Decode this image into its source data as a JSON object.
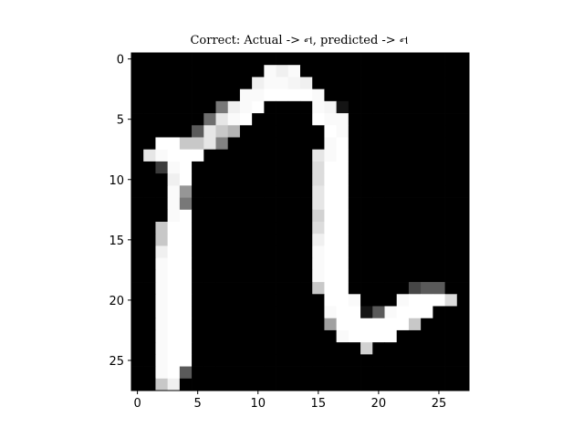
{
  "chart_data": {
    "type": "heatmap",
    "title": "Correct: Actual -> ન, predicted -> ન",
    "colormap": "gray",
    "xlabel": "",
    "ylabel": "",
    "x_ticks": [
      0,
      5,
      10,
      15,
      20,
      25
    ],
    "y_ticks": [
      0,
      5,
      10,
      15,
      20,
      25
    ],
    "xlim": [
      -0.5,
      27.5
    ],
    "ylim": [
      27.5,
      -0.5
    ],
    "grid": false,
    "rows": 28,
    "cols": 28,
    "values": [
      [
        0,
        0,
        0,
        0,
        0,
        0,
        0,
        0,
        0,
        0,
        0,
        0,
        0,
        0,
        0,
        0,
        0,
        0,
        0,
        0,
        0,
        0,
        0,
        0,
        0,
        0,
        0,
        0
      ],
      [
        0,
        0,
        0,
        0,
        0,
        0,
        0,
        0,
        0,
        0,
        0,
        250,
        240,
        250,
        0,
        0,
        0,
        0,
        0,
        0,
        0,
        0,
        0,
        0,
        0,
        0,
        0,
        0
      ],
      [
        0,
        0,
        0,
        0,
        0,
        0,
        0,
        0,
        0,
        0,
        240,
        250,
        250,
        245,
        240,
        0,
        0,
        0,
        0,
        0,
        0,
        0,
        0,
        0,
        0,
        0,
        0,
        0
      ],
      [
        0,
        0,
        0,
        0,
        0,
        0,
        0,
        0,
        0,
        250,
        250,
        255,
        255,
        255,
        255,
        250,
        0,
        0,
        0,
        0,
        0,
        0,
        0,
        0,
        0,
        0,
        0,
        0
      ],
      [
        0,
        0,
        0,
        0,
        0,
        0,
        0,
        120,
        240,
        250,
        255,
        0,
        0,
        0,
        0,
        250,
        245,
        20,
        0,
        0,
        0,
        0,
        0,
        0,
        0,
        0,
        0,
        0
      ],
      [
        0,
        0,
        0,
        0,
        0,
        0,
        110,
        230,
        250,
        255,
        0,
        0,
        0,
        0,
        0,
        255,
        250,
        250,
        0,
        0,
        0,
        0,
        0,
        0,
        0,
        0,
        0,
        0
      ],
      [
        0,
        0,
        0,
        0,
        0,
        90,
        230,
        200,
        180,
        0,
        0,
        0,
        0,
        0,
        0,
        0,
        255,
        250,
        0,
        0,
        0,
        0,
        0,
        0,
        0,
        0,
        0,
        0
      ],
      [
        0,
        0,
        255,
        255,
        200,
        200,
        230,
        130,
        0,
        0,
        0,
        0,
        0,
        0,
        0,
        0,
        250,
        255,
        0,
        0,
        0,
        0,
        0,
        0,
        0,
        0,
        0,
        0
      ],
      [
        0,
        230,
        250,
        255,
        255,
        255,
        0,
        0,
        0,
        0,
        0,
        0,
        0,
        0,
        0,
        230,
        250,
        255,
        0,
        0,
        0,
        0,
        0,
        0,
        0,
        0,
        0,
        0
      ],
      [
        0,
        0,
        60,
        250,
        255,
        0,
        0,
        0,
        0,
        0,
        0,
        0,
        0,
        0,
        0,
        220,
        255,
        255,
        0,
        0,
        0,
        0,
        0,
        0,
        0,
        0,
        0,
        0
      ],
      [
        0,
        0,
        0,
        240,
        255,
        0,
        0,
        0,
        0,
        0,
        0,
        0,
        0,
        0,
        0,
        220,
        255,
        255,
        0,
        0,
        0,
        0,
        0,
        0,
        0,
        0,
        0,
        0
      ],
      [
        0,
        0,
        0,
        250,
        150,
        0,
        0,
        0,
        0,
        0,
        0,
        0,
        0,
        0,
        0,
        230,
        255,
        255,
        0,
        0,
        0,
        0,
        0,
        0,
        0,
        0,
        0,
        0
      ],
      [
        0,
        0,
        0,
        250,
        120,
        0,
        0,
        0,
        0,
        0,
        0,
        0,
        0,
        0,
        0,
        230,
        255,
        255,
        0,
        0,
        0,
        0,
        0,
        0,
        0,
        0,
        0,
        0
      ],
      [
        0,
        0,
        0,
        250,
        255,
        0,
        0,
        0,
        0,
        0,
        0,
        0,
        0,
        0,
        0,
        210,
        255,
        255,
        0,
        0,
        0,
        0,
        0,
        0,
        0,
        0,
        0,
        0
      ],
      [
        0,
        0,
        200,
        255,
        255,
        0,
        0,
        0,
        0,
        0,
        0,
        0,
        0,
        0,
        0,
        220,
        255,
        255,
        0,
        0,
        0,
        0,
        0,
        0,
        0,
        0,
        0,
        0
      ],
      [
        0,
        0,
        200,
        255,
        255,
        0,
        0,
        0,
        0,
        0,
        0,
        0,
        0,
        0,
        0,
        240,
        255,
        255,
        0,
        0,
        0,
        0,
        0,
        0,
        0,
        0,
        0,
        0
      ],
      [
        0,
        0,
        240,
        255,
        255,
        0,
        0,
        0,
        0,
        0,
        0,
        0,
        0,
        0,
        0,
        250,
        255,
        255,
        0,
        0,
        0,
        0,
        0,
        0,
        0,
        0,
        0,
        0
      ],
      [
        0,
        0,
        250,
        255,
        255,
        0,
        0,
        0,
        0,
        0,
        0,
        0,
        0,
        0,
        0,
        250,
        255,
        255,
        0,
        0,
        0,
        0,
        0,
        0,
        0,
        0,
        0,
        0
      ],
      [
        0,
        0,
        250,
        255,
        255,
        0,
        0,
        0,
        0,
        0,
        0,
        0,
        0,
        0,
        0,
        250,
        255,
        255,
        0,
        0,
        0,
        0,
        0,
        0,
        0,
        0,
        0,
        0
      ],
      [
        0,
        0,
        250,
        255,
        255,
        0,
        0,
        0,
        0,
        0,
        0,
        0,
        0,
        0,
        0,
        200,
        255,
        255,
        0,
        0,
        0,
        0,
        0,
        70,
        90,
        90,
        0,
        0
      ],
      [
        0,
        0,
        250,
        255,
        255,
        0,
        0,
        0,
        0,
        0,
        0,
        0,
        0,
        0,
        0,
        0,
        255,
        255,
        250,
        0,
        0,
        0,
        250,
        255,
        255,
        255,
        220,
        0
      ],
      [
        0,
        0,
        250,
        255,
        255,
        0,
        0,
        0,
        0,
        0,
        0,
        0,
        0,
        0,
        0,
        0,
        250,
        255,
        255,
        20,
        90,
        250,
        255,
        255,
        255,
        0,
        0,
        0
      ],
      [
        0,
        0,
        250,
        255,
        255,
        0,
        0,
        0,
        0,
        0,
        0,
        0,
        0,
        0,
        0,
        0,
        160,
        255,
        255,
        255,
        255,
        255,
        255,
        200,
        0,
        0,
        0,
        0
      ],
      [
        0,
        0,
        250,
        255,
        255,
        0,
        0,
        0,
        0,
        0,
        0,
        0,
        0,
        0,
        0,
        0,
        0,
        250,
        255,
        255,
        255,
        255,
        0,
        0,
        0,
        0,
        0,
        0
      ],
      [
        0,
        0,
        250,
        255,
        255,
        0,
        0,
        0,
        0,
        0,
        0,
        0,
        0,
        0,
        0,
        0,
        0,
        0,
        0,
        210,
        0,
        0,
        0,
        0,
        0,
        0,
        0,
        0
      ],
      [
        0,
        0,
        250,
        255,
        255,
        0,
        0,
        0,
        0,
        0,
        0,
        0,
        0,
        0,
        0,
        0,
        0,
        0,
        0,
        0,
        0,
        0,
        0,
        0,
        0,
        0,
        0,
        0
      ],
      [
        0,
        0,
        250,
        255,
        90,
        0,
        0,
        0,
        0,
        0,
        0,
        0,
        0,
        0,
        0,
        0,
        0,
        0,
        0,
        0,
        0,
        0,
        0,
        0,
        0,
        0,
        0,
        0
      ],
      [
        0,
        0,
        200,
        240,
        0,
        0,
        0,
        0,
        0,
        0,
        0,
        0,
        0,
        0,
        0,
        0,
        0,
        0,
        0,
        0,
        0,
        0,
        0,
        0,
        0,
        0,
        0,
        0
      ]
    ]
  }
}
